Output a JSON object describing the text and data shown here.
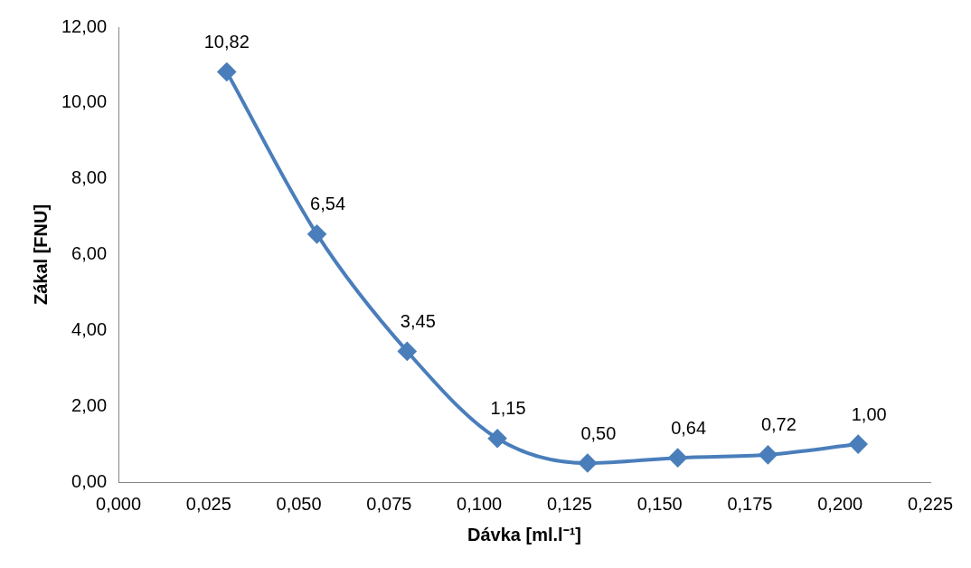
{
  "chart_data": {
    "type": "line",
    "xlabel": "Dávka [ml.l⁻¹]",
    "ylabel": "Zákal [FNU]",
    "x": [
      0.03,
      0.055,
      0.08,
      0.105,
      0.13,
      0.155,
      0.18,
      0.205
    ],
    "series": [
      {
        "color": "#4a7ebb",
        "values": [
          10.82,
          6.54,
          3.45,
          1.15,
          0.5,
          0.64,
          0.72,
          1.0
        ],
        "value_labels": [
          "10,82",
          "6,54",
          "3,45",
          "1,15",
          "0,50",
          "0,64",
          "0,72",
          "1,00"
        ]
      }
    ],
    "xlim": [
      0,
      0.225
    ],
    "xticks": [
      {
        "value": 0,
        "label": "0,000"
      },
      {
        "value": 0.025,
        "label": "0,025"
      },
      {
        "value": 0.05,
        "label": "0,050"
      },
      {
        "value": 0.075,
        "label": "0,075"
      },
      {
        "value": 0.1,
        "label": "0,100"
      },
      {
        "value": 0.125,
        "label": "0,125"
      },
      {
        "value": 0.15,
        "label": "0,150"
      },
      {
        "value": 0.175,
        "label": "0,175"
      },
      {
        "value": 0.2,
        "label": "0,200"
      },
      {
        "value": 0.225,
        "label": "0,225"
      }
    ],
    "ylim": [
      0,
      12
    ],
    "yticks": [
      {
        "value": 0,
        "label": "0,00"
      },
      {
        "value": 2,
        "label": "2,00"
      },
      {
        "value": 4,
        "label": "4,00"
      },
      {
        "value": 6,
        "label": "6,00"
      },
      {
        "value": 8,
        "label": "8,00"
      },
      {
        "value": 10,
        "label": "10,00"
      },
      {
        "value": 12,
        "label": "12,00"
      }
    ],
    "marker": "diamond",
    "line_style": "solid",
    "grid": false,
    "legend": false
  }
}
